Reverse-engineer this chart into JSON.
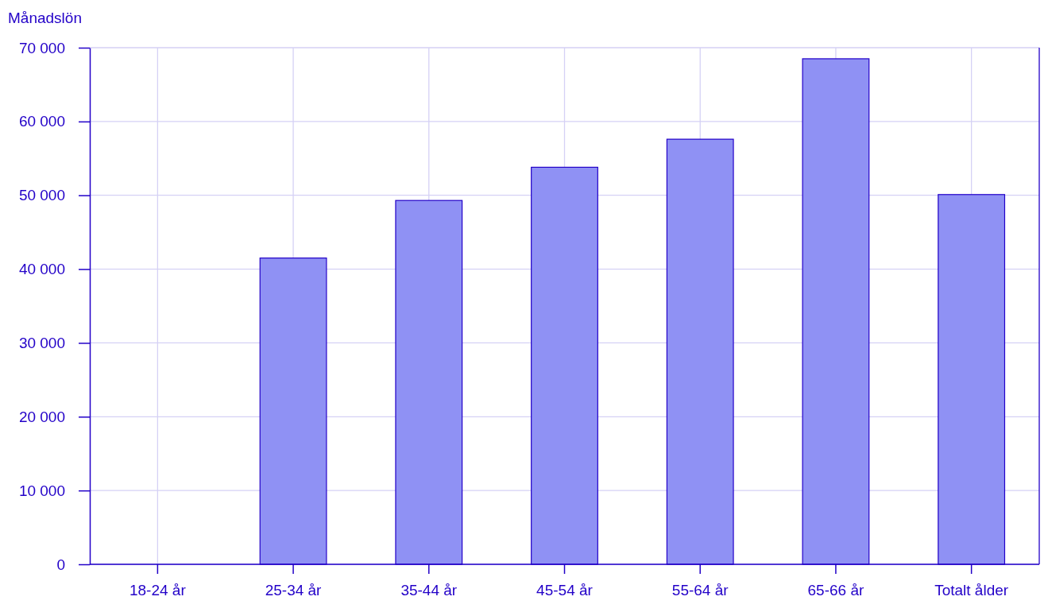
{
  "chart_data": {
    "type": "bar",
    "ylabel": "Månadslön",
    "categories": [
      "18-24 år",
      "25-34 år",
      "35-44 år",
      "45-54 år",
      "55-64 år",
      "65-66 år",
      "Totalt ålder"
    ],
    "values": [
      null,
      41500,
      49300,
      53800,
      57600,
      68500,
      50100
    ],
    "color": "#8f91f4",
    "ylim": [
      0,
      70000
    ],
    "yticks": [
      {
        "value": 0,
        "label": "0"
      },
      {
        "value": 10000,
        "label": "10 000"
      },
      {
        "value": 20000,
        "label": "20 000"
      },
      {
        "value": 30000,
        "label": "30 000"
      },
      {
        "value": 40000,
        "label": "40 000"
      },
      {
        "value": 50000,
        "label": "50 000"
      },
      {
        "value": 60000,
        "label": "60 000"
      },
      {
        "value": 70000,
        "label": "70 000"
      }
    ],
    "grid": true
  }
}
